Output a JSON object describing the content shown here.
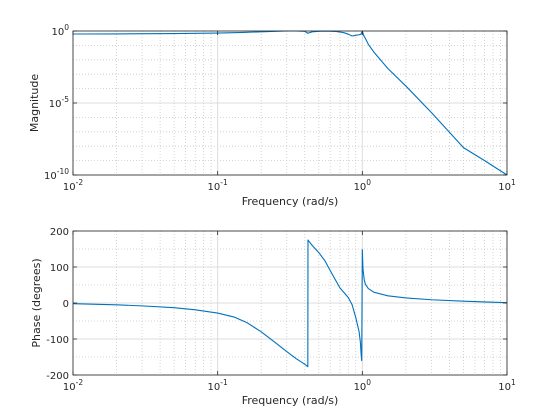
{
  "colors": {
    "series": "#0072bd"
  },
  "chart_data": [
    {
      "type": "line",
      "title": "",
      "xlabel": "Frequency (rad/s)",
      "ylabel": "Magnitude",
      "xscale": "log",
      "yscale": "log",
      "xlim": [
        0.01,
        10
      ],
      "ylim": [
        1e-10,
        1
      ],
      "xticks": [
        0.01,
        0.1,
        1,
        10
      ],
      "yticks": [
        1e-10,
        1e-05,
        1
      ],
      "xtick_labels": [
        {
          "base": "10",
          "exp": "-2"
        },
        {
          "base": "10",
          "exp": "-1"
        },
        {
          "base": "10",
          "exp": "0"
        },
        {
          "base": "10",
          "exp": "1"
        }
      ],
      "ytick_labels": [
        {
          "base": "10",
          "exp": "-10"
        },
        {
          "base": "10",
          "exp": "-5"
        },
        {
          "base": "10",
          "exp": "0"
        }
      ],
      "grid": true,
      "minor_grid": true,
      "series": [
        {
          "x": [
            0.01,
            0.02,
            0.05,
            0.1,
            0.15,
            0.2,
            0.25,
            0.3,
            0.35,
            0.4,
            0.42,
            0.45,
            0.5,
            0.55,
            0.6,
            0.65,
            0.7,
            0.75,
            0.8,
            0.85,
            0.9,
            0.95,
            0.98,
            1.0,
            1.02,
            1.05,
            1.1,
            1.2,
            1.5,
            2,
            3,
            5,
            7,
            10
          ],
          "y": [
            0.62,
            0.63,
            0.66,
            0.72,
            0.8,
            0.88,
            0.95,
            1.0,
            1.0,
            0.95,
            0.7,
            0.88,
            0.95,
            0.98,
            0.97,
            0.94,
            0.85,
            0.75,
            0.6,
            0.45,
            0.5,
            0.55,
            0.6,
            1.0,
            0.5,
            0.3,
            0.12,
            0.035,
            0.0025,
            0.00015,
            2.2e-06,
            8e-09,
            1e-09,
            1e-10
          ]
        }
      ]
    },
    {
      "type": "line",
      "title": "",
      "xlabel": "Frequency (rad/s)",
      "ylabel": "Phase (degrees)",
      "xscale": "log",
      "yscale": "linear",
      "xlim": [
        0.01,
        10
      ],
      "ylim": [
        -200,
        200
      ],
      "xticks": [
        0.01,
        0.1,
        1,
        10
      ],
      "yticks": [
        -200,
        -100,
        0,
        100,
        200
      ],
      "xtick_labels": [
        {
          "base": "10",
          "exp": "-2"
        },
        {
          "base": "10",
          "exp": "-1"
        },
        {
          "base": "10",
          "exp": "0"
        },
        {
          "base": "10",
          "exp": "1"
        }
      ],
      "ytick_labels": [
        "-200",
        "-100",
        "0",
        "100",
        "200"
      ],
      "grid": true,
      "minor_grid": true,
      "series": [
        {
          "x": [
            0.01,
            0.02,
            0.03,
            0.05,
            0.07,
            0.1,
            0.13,
            0.16,
            0.2,
            0.25,
            0.3,
            0.35,
            0.4,
            0.42,
            0.421,
            0.43,
            0.45,
            0.5,
            0.55,
            0.6,
            0.65,
            0.7,
            0.75,
            0.8,
            0.85,
            0.9,
            0.95,
            0.97,
            0.98,
            0.99,
            1.0,
            1.01,
            1.03,
            1.05,
            1.1,
            1.2,
            1.5,
            2,
            3,
            5,
            10
          ],
          "y": [
            -2,
            -5,
            -8,
            -13,
            -19,
            -28,
            -39,
            -55,
            -80,
            -110,
            -135,
            -155,
            -170,
            -177,
            175,
            170,
            160,
            140,
            118,
            90,
            65,
            42,
            28,
            15,
            -5,
            -40,
            -80,
            -110,
            -140,
            -160,
            148,
            95,
            65,
            52,
            40,
            30,
            20,
            14,
            9,
            5,
            1
          ]
        }
      ]
    }
  ]
}
